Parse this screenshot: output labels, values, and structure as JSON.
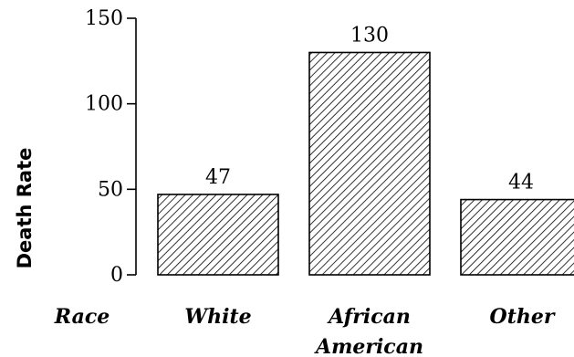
{
  "chart_data": {
    "type": "bar",
    "title": "",
    "xlabel": "Race",
    "ylabel": "Death Rate",
    "categories": [
      [
        "White"
      ],
      [
        "African",
        "American"
      ],
      [
        "Other"
      ]
    ],
    "values": [
      47,
      130,
      44
    ],
    "data_labels": [
      "47",
      "130",
      "44"
    ],
    "yticks": [
      0,
      50,
      100,
      150
    ],
    "ylim": [
      0,
      150
    ],
    "grid": false,
    "bar_fill": "diagonal-hatch",
    "colors": {
      "stroke": "#000000",
      "background": "#ffffff"
    }
  }
}
